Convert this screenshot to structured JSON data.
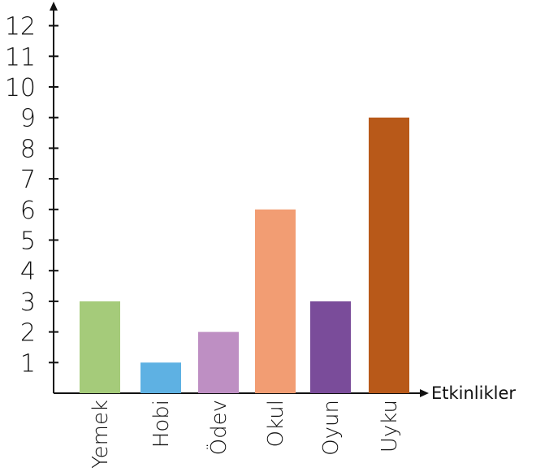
{
  "chart_data": {
    "type": "bar",
    "categories": [
      "Yemek",
      "Hobi",
      "Ödev",
      "Okul",
      "Oyun",
      "Uyku"
    ],
    "values": [
      3,
      1,
      2,
      6,
      3,
      9
    ],
    "colors": [
      "#a5cb7a",
      "#5eb1e3",
      "#be8fc3",
      "#f29d73",
      "#7a4c9a",
      "#b85919"
    ],
    "title": "",
    "xlabel": "Etkinlikler",
    "ylabel": "",
    "ylim": [
      0,
      12
    ],
    "yticks": [
      "1",
      "2",
      "3",
      "4",
      "5",
      "6",
      "7",
      "8",
      "9",
      "10",
      "11",
      "12"
    ],
    "grid": false,
    "legend": "none"
  }
}
